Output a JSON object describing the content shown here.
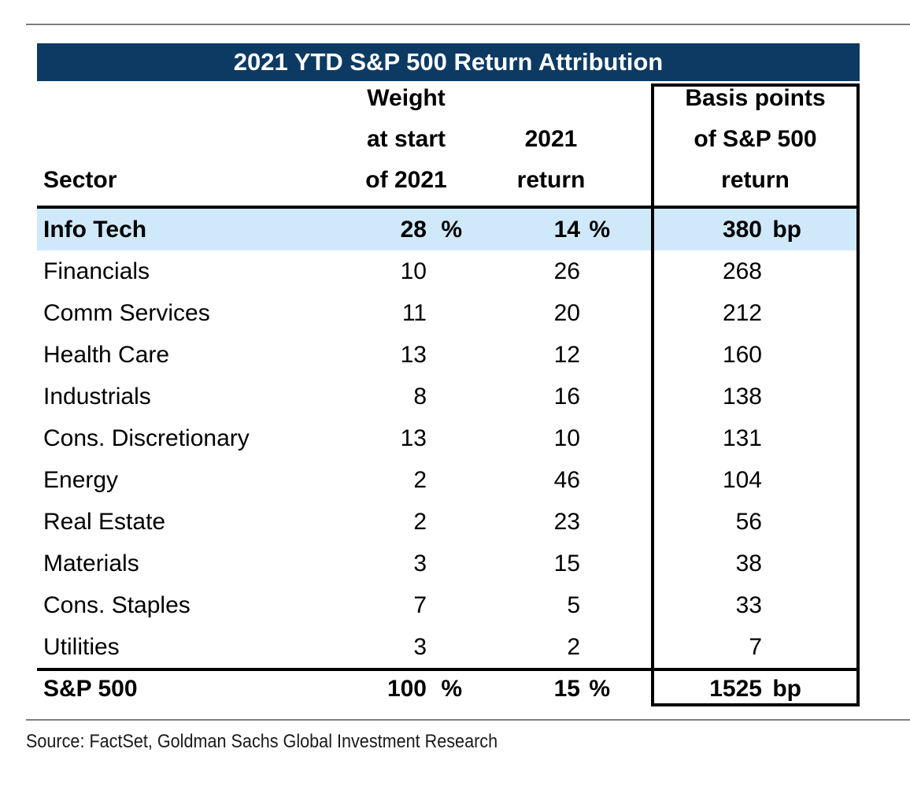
{
  "chart_data": {
    "type": "table",
    "title": "2021 YTD S&P 500 Return Attribution",
    "columns": [
      "Sector",
      "Weight at start of 2021",
      "2021 return",
      "Basis points of S&P 500 return"
    ],
    "units": {
      "weight": "%",
      "return": "%",
      "basis_points": "bp"
    },
    "rows": [
      [
        "Info Tech",
        28,
        14,
        380
      ],
      [
        "Financials",
        10,
        26,
        268
      ],
      [
        "Comm Services",
        11,
        20,
        212
      ],
      [
        "Health Care",
        13,
        12,
        160
      ],
      [
        "Industrials",
        8,
        16,
        138
      ],
      [
        "Cons. Discretionary",
        13,
        10,
        131
      ],
      [
        "Energy",
        2,
        46,
        104
      ],
      [
        "Real Estate",
        2,
        23,
        56
      ],
      [
        "Materials",
        3,
        15,
        38
      ],
      [
        "Cons. Staples",
        7,
        5,
        33
      ],
      [
        "Utilities",
        3,
        2,
        7
      ]
    ],
    "total": [
      "S&P 500",
      100,
      15,
      1525
    ],
    "highlighted_row": "Info Tech",
    "source": "Source: FactSet, Goldman Sachs Global Investment Research",
    "colors": {
      "title_bar": "#0d3a63",
      "highlight_row": "#cfe9fb",
      "rule_gray": "#7f7f7f"
    }
  },
  "table": {
    "title": "2021 YTD S&P 500 Return Attribution",
    "columns": {
      "sector": "Sector",
      "weight": [
        "Weight",
        "at start",
        "of 2021"
      ],
      "ret": [
        "2021",
        "return"
      ],
      "bp": [
        "Basis points",
        "of S&P 500",
        "return"
      ]
    },
    "rows": [
      {
        "sector": "Info Tech",
        "weight": "28",
        "weight_unit": "%",
        "ret": "14",
        "ret_unit": "%",
        "bp": "380",
        "bp_unit": "bp"
      },
      {
        "sector": "Financials",
        "weight": "10",
        "ret": "26",
        "bp": "268"
      },
      {
        "sector": "Comm Services",
        "weight": "11",
        "ret": "20",
        "bp": "212"
      },
      {
        "sector": "Health Care",
        "weight": "13",
        "ret": "12",
        "bp": "160"
      },
      {
        "sector": "Industrials",
        "weight": "8",
        "ret": "16",
        "bp": "138"
      },
      {
        "sector": "Cons. Discretionary",
        "weight": "13",
        "ret": "10",
        "bp": "131"
      },
      {
        "sector": "Energy",
        "weight": "2",
        "ret": "46",
        "bp": "104"
      },
      {
        "sector": "Real Estate",
        "weight": "2",
        "ret": "23",
        "bp": "56"
      },
      {
        "sector": "Materials",
        "weight": "3",
        "ret": "15",
        "bp": "38"
      },
      {
        "sector": "Cons. Staples",
        "weight": "7",
        "ret": "5",
        "bp": "33"
      },
      {
        "sector": "Utilities",
        "weight": "3",
        "ret": "2",
        "bp": "7"
      }
    ],
    "total": {
      "sector": "S&P 500",
      "weight": "100",
      "weight_unit": "%",
      "ret": "15",
      "ret_unit": "%",
      "bp": "1525",
      "bp_unit": "bp"
    }
  },
  "source_text": "Source: FactSet, Goldman Sachs Global Investment Research"
}
